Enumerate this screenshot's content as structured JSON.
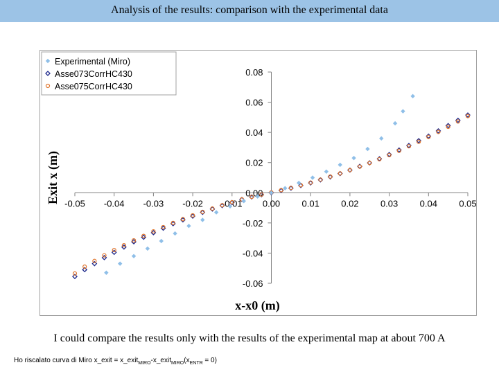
{
  "slide": {
    "title": "Analysis of the results: comparison with the experimental data",
    "caption": "I could compare the results only with the results of the experimental map at about 700 A",
    "footnote": {
      "part1": "Ho riscalato curva di Miro x_exit = x_exit",
      "sub1": "MIRO",
      "part2": "-x_exit",
      "sub2": "MIRO",
      "part3": "(x",
      "sub3": "ENTR",
      "part4": " = 0)"
    }
  },
  "colors": {
    "title_bar": "#9cc3e6",
    "experimental": "#8fbfe8",
    "asse073": "#1f2a8c",
    "asse075": "#e0752d"
  },
  "chart_data": {
    "type": "scatter",
    "xlabel": "x-x0 (m)",
    "ylabel": "Exit x (m)",
    "xlim": [
      -0.05,
      0.05
    ],
    "ylim": [
      -0.06,
      0.08
    ],
    "xticks": [
      -0.05,
      -0.04,
      -0.03,
      -0.02,
      -0.01,
      0.0,
      0.01,
      0.02,
      0.03,
      0.04,
      0.05
    ],
    "yticks": [
      -0.06,
      -0.04,
      -0.02,
      0.0,
      0.02,
      0.04,
      0.06,
      0.08
    ],
    "grid": false,
    "legend_position": "top-left",
    "series": [
      {
        "name": "Experimental (Miro)",
        "marker": "diamond-filled",
        "x": [
          -0.042,
          -0.0385,
          -0.035,
          -0.0315,
          -0.028,
          -0.0245,
          -0.021,
          -0.0175,
          -0.014,
          -0.0105,
          -0.007,
          -0.0035,
          0.0,
          0.0035,
          0.007,
          0.0105,
          0.014,
          0.0175,
          0.021,
          0.0245,
          0.028,
          0.0315,
          0.0335,
          0.036
        ],
        "y": [
          -0.053,
          -0.047,
          -0.042,
          -0.037,
          -0.032,
          -0.027,
          -0.022,
          -0.018,
          -0.013,
          -0.009,
          -0.0055,
          -0.0025,
          0.0,
          0.003,
          0.0065,
          0.01,
          0.014,
          0.0185,
          0.023,
          0.029,
          0.036,
          0.046,
          0.054,
          0.064
        ]
      },
      {
        "name": "Asse073CorrHC430",
        "marker": "diamond-open",
        "x": [
          -0.05,
          -0.0475,
          -0.045,
          -0.0425,
          -0.04,
          -0.0375,
          -0.035,
          -0.0325,
          -0.03,
          -0.0275,
          -0.025,
          -0.0225,
          -0.02,
          -0.0175,
          -0.015,
          -0.0125,
          -0.01,
          -0.0075,
          -0.005,
          -0.0025,
          0.0,
          0.0025,
          0.005,
          0.0075,
          0.01,
          0.0125,
          0.015,
          0.0175,
          0.02,
          0.0225,
          0.025,
          0.0275,
          0.03,
          0.0325,
          0.035,
          0.0375,
          0.04,
          0.0425,
          0.045,
          0.0475,
          0.05
        ],
        "y": [
          -0.0555,
          -0.051,
          -0.047,
          -0.043,
          -0.0395,
          -0.036,
          -0.0325,
          -0.0295,
          -0.0265,
          -0.0235,
          -0.0205,
          -0.018,
          -0.0155,
          -0.013,
          -0.0108,
          -0.0085,
          -0.0065,
          -0.0045,
          -0.0028,
          -0.0013,
          0.0,
          0.0015,
          0.003,
          0.0048,
          0.0065,
          0.0085,
          0.0105,
          0.0127,
          0.015,
          0.0175,
          0.0198,
          0.0225,
          0.0253,
          0.0283,
          0.0313,
          0.0345,
          0.0375,
          0.041,
          0.0445,
          0.048,
          0.0515
        ]
      },
      {
        "name": "Asse075CorrHC430",
        "marker": "circle-open",
        "x": [
          -0.05,
          -0.0475,
          -0.045,
          -0.0425,
          -0.04,
          -0.0375,
          -0.035,
          -0.0325,
          -0.03,
          -0.0275,
          -0.025,
          -0.0225,
          -0.02,
          -0.0175,
          -0.015,
          -0.0125,
          -0.01,
          -0.0075,
          -0.005,
          -0.0025,
          0.0,
          0.0025,
          0.005,
          0.0075,
          0.01,
          0.0125,
          0.015,
          0.0175,
          0.02,
          0.0225,
          0.025,
          0.0275,
          0.03,
          0.0325,
          0.035,
          0.0375,
          0.04,
          0.0425,
          0.045,
          0.0475,
          0.05
        ],
        "y": [
          -0.0535,
          -0.049,
          -0.0452,
          -0.0415,
          -0.038,
          -0.0348,
          -0.0316,
          -0.0286,
          -0.0256,
          -0.0228,
          -0.02,
          -0.0175,
          -0.015,
          -0.0127,
          -0.0105,
          -0.0083,
          -0.0063,
          -0.0044,
          -0.0027,
          -0.0012,
          0.0002,
          0.0017,
          0.0032,
          0.005,
          0.0067,
          0.0087,
          0.0107,
          0.0128,
          0.015,
          0.0173,
          0.0197,
          0.0222,
          0.0249,
          0.0278,
          0.0308,
          0.0338,
          0.037,
          0.0403,
          0.0437,
          0.0472,
          0.0508
        ]
      }
    ]
  }
}
